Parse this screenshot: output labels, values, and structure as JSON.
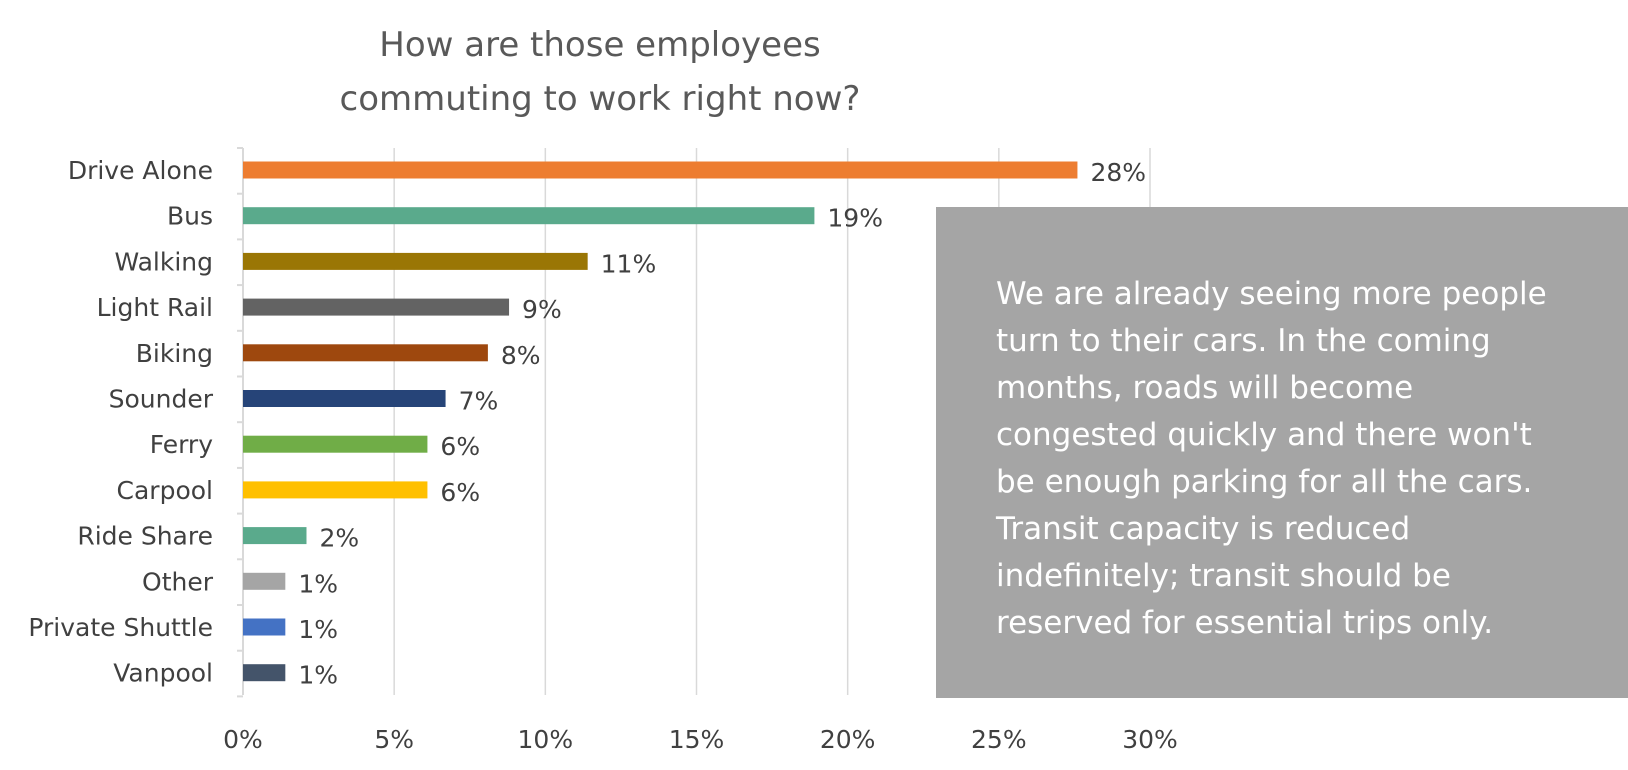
{
  "chart_data": {
    "type": "bar",
    "orientation": "horizontal",
    "title": "How are those employees\ncommuting to work right now?",
    "categories": [
      "Drive Alone",
      "Bus",
      "Walking",
      "Light Rail",
      "Biking",
      "Sounder",
      "Ferry",
      "Carpool",
      "Ride Share",
      "Other",
      "Private Shuttle",
      "Vanpool"
    ],
    "values": [
      27.6,
      18.9,
      11.4,
      8.8,
      8.1,
      6.7,
      6.1,
      6.1,
      2.1,
      1.4,
      1.4,
      1.4
    ],
    "data_labels": [
      "28%",
      "19%",
      "11%",
      "9%",
      "8%",
      "7%",
      "6%",
      "6%",
      "2%",
      "1%",
      "1%",
      "1%"
    ],
    "colors": [
      "#ed7d31",
      "#5aaa8c",
      "#9a7605",
      "#636363",
      "#9e480e",
      "#264478",
      "#70ad47",
      "#ffc000",
      "#5aaa8c",
      "#a5a5a5",
      "#4472c4",
      "#44546a"
    ],
    "xlim": [
      0,
      30
    ],
    "xticks": [
      0,
      5,
      10,
      15,
      20,
      25,
      30
    ],
    "xtick_labels": [
      "0%",
      "5%",
      "10%",
      "15%",
      "20%",
      "25%",
      "30%"
    ],
    "xlabel": "",
    "ylabel": "",
    "grid": "vertical",
    "legend": "none"
  },
  "note": {
    "text": "We are already seeing more people\nturn to their cars. In the coming\nmonths, roads will become\ncongested quickly and there won't\nbe enough parking for all the cars.\nTransit capacity is reduced\nindefinitely; transit should be\nreserved for essential trips only.",
    "background": "#a5a5a5"
  }
}
